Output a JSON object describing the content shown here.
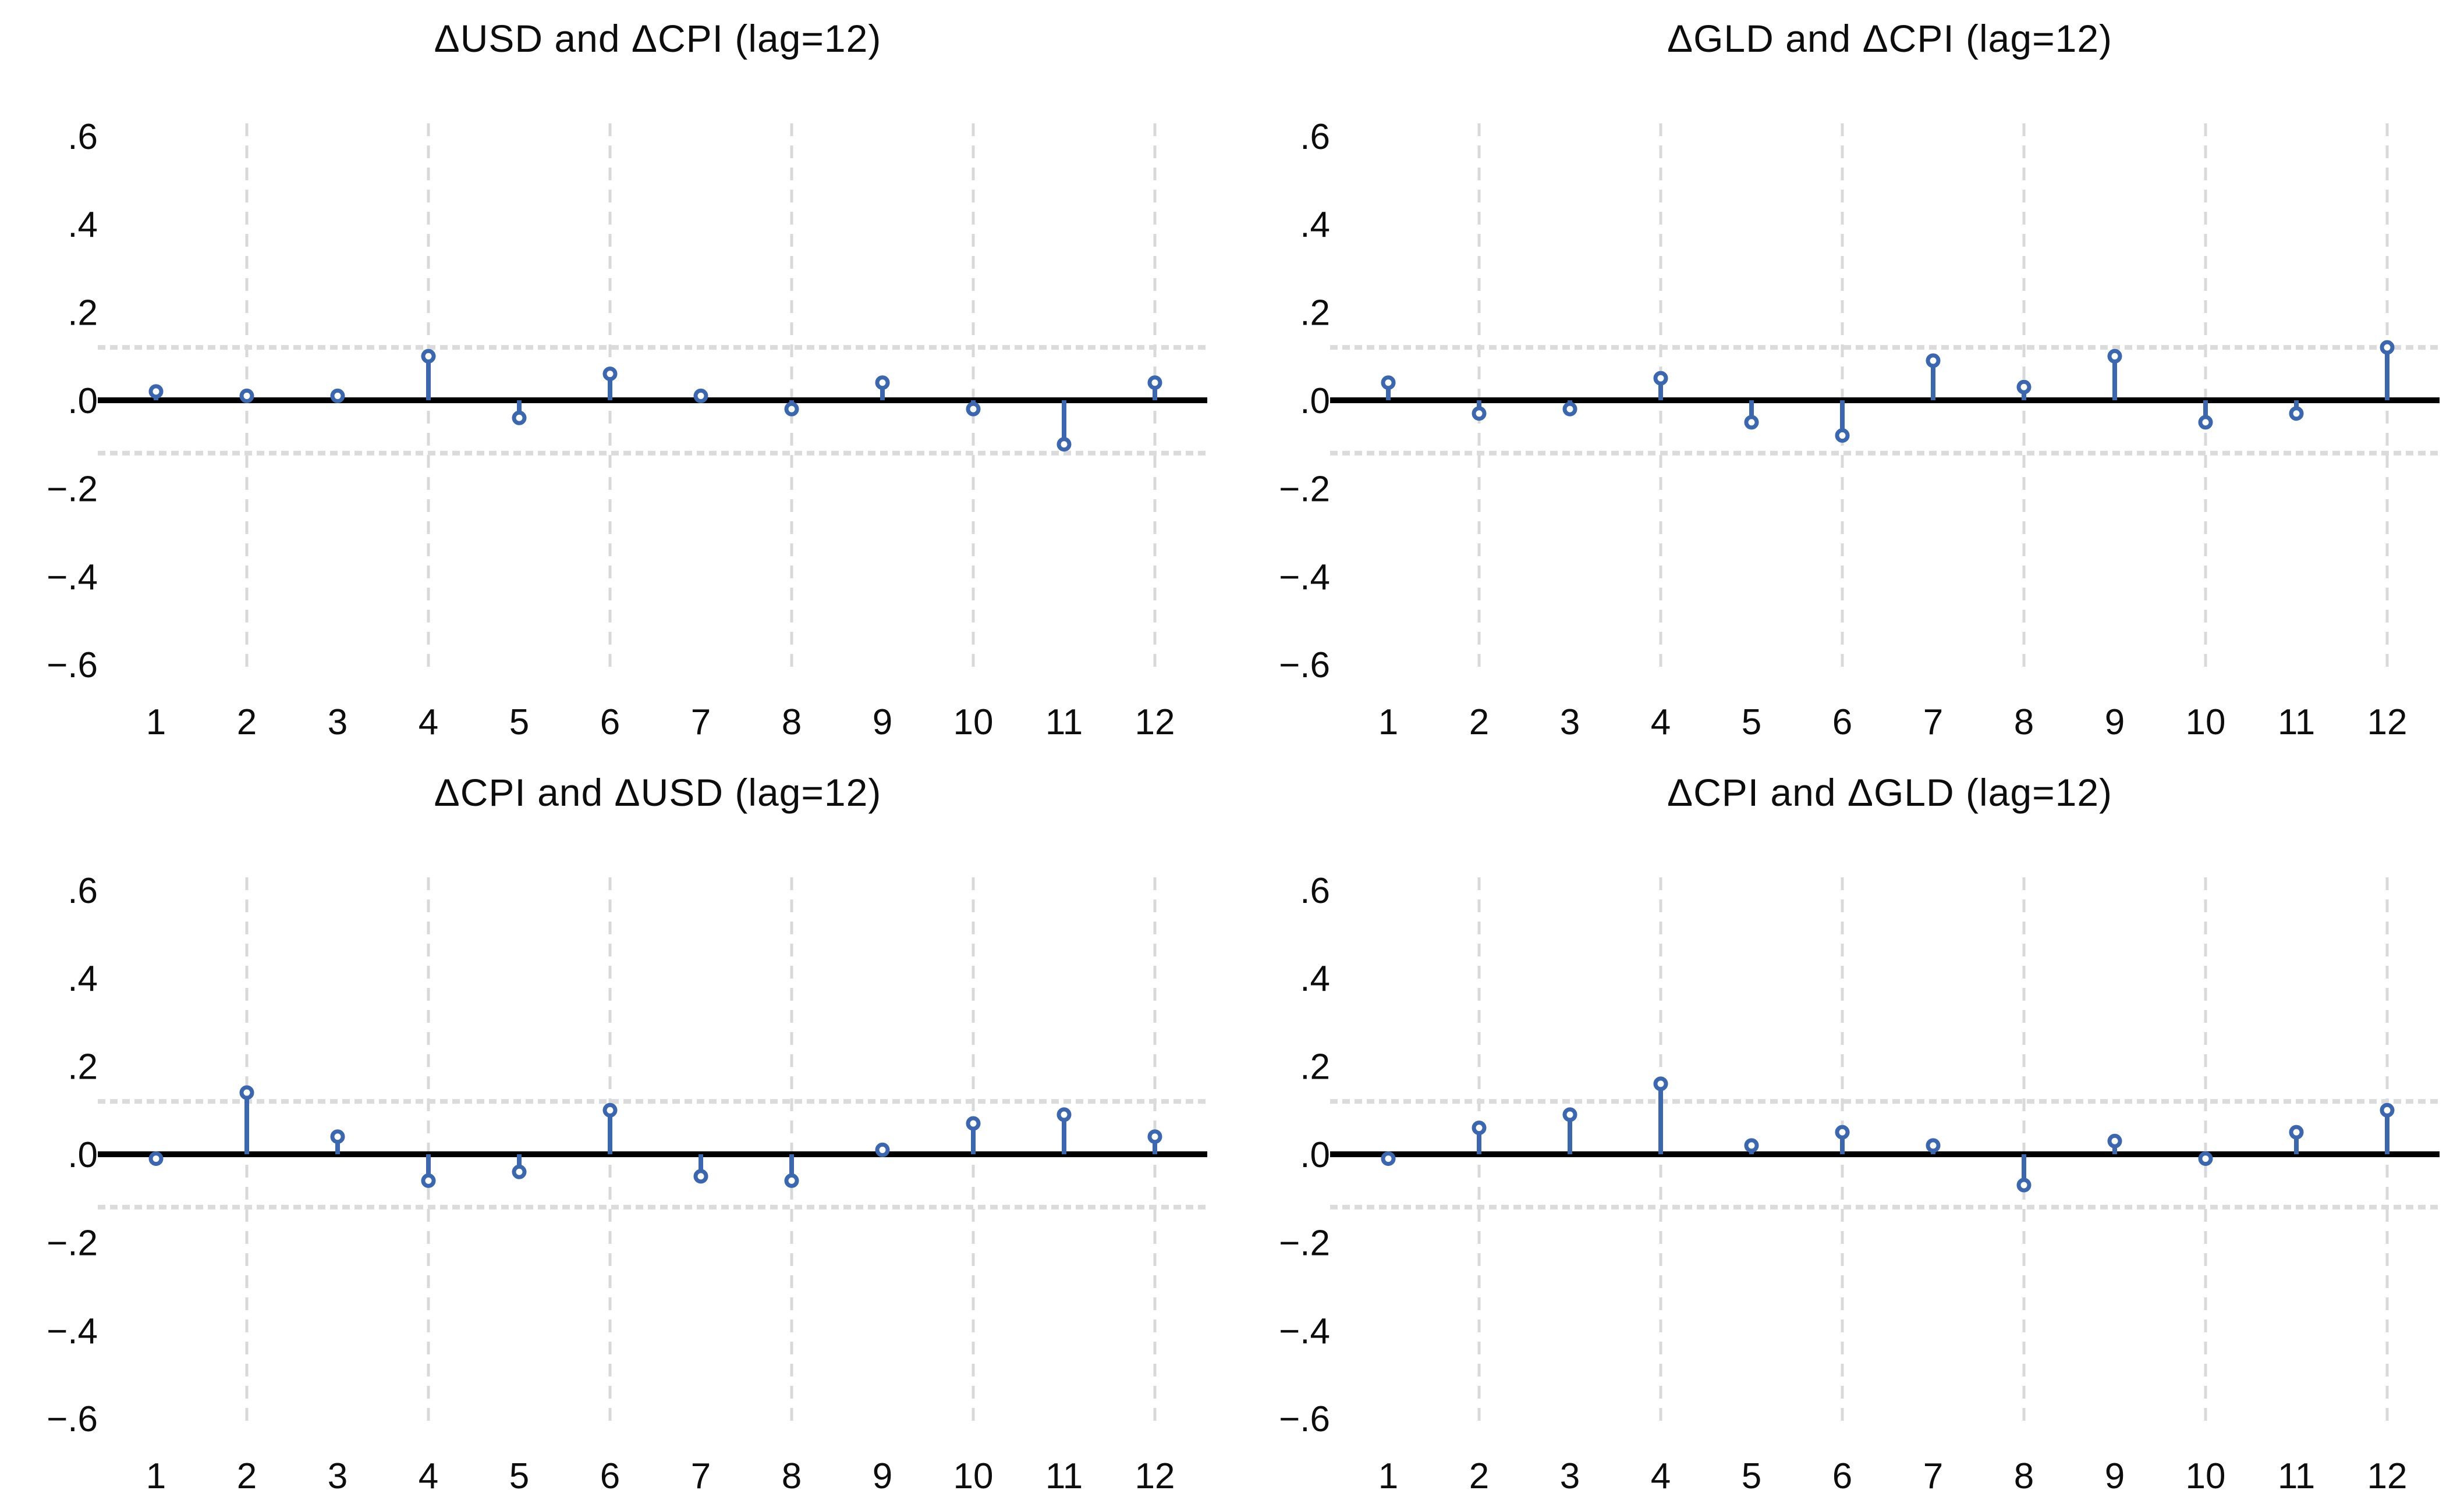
{
  "colors": {
    "stem": "#3A67B0",
    "marker_fill": "#ffffff",
    "zero_line": "#000000",
    "gridline": "#D9D9D9",
    "ci_line": "#DBDBDB",
    "text": "#0d0d0d",
    "background": "#ffffff"
  },
  "y_axis": {
    "tick_labels": [
      ".6",
      ".4",
      ".2",
      ".0",
      "−.2",
      "−.4",
      "−.6"
    ],
    "tick_values": [
      0.6,
      0.4,
      0.2,
      0.0,
      -0.2,
      -0.4,
      -0.6
    ],
    "range": [
      -0.63,
      0.63
    ]
  },
  "x_axis": {
    "tick_labels": [
      "1",
      "2",
      "3",
      "4",
      "5",
      "6",
      "7",
      "8",
      "9",
      "10",
      "11",
      "12"
    ],
    "gridlines_at": [
      1.5,
      3.5,
      5.5,
      7.5,
      9.5,
      11.5
    ]
  },
  "chart_data": [
    {
      "type": "stem",
      "title": "ΔUSD and ΔCPI (lag=12)",
      "categories": [
        1,
        2,
        3,
        4,
        5,
        6,
        7,
        8,
        9,
        10,
        11,
        12
      ],
      "values": [
        0.02,
        0.01,
        0.01,
        0.1,
        -0.04,
        0.06,
        0.01,
        -0.02,
        0.04,
        -0.02,
        -0.1,
        0.04
      ],
      "xlabel": "",
      "ylabel": "",
      "ylim": [
        -0.6,
        0.6
      ],
      "ci_band": 0.12,
      "grid": "dashed",
      "legend": "none"
    },
    {
      "type": "stem",
      "title": "ΔGLD and ΔCPI (lag=12)",
      "categories": [
        1,
        2,
        3,
        4,
        5,
        6,
        7,
        8,
        9,
        10,
        11,
        12
      ],
      "values": [
        0.04,
        -0.03,
        -0.02,
        0.05,
        -0.05,
        -0.08,
        0.09,
        0.03,
        0.1,
        -0.05,
        -0.03,
        0.12
      ],
      "xlabel": "",
      "ylabel": "",
      "ylim": [
        -0.6,
        0.6
      ],
      "ci_band": 0.12,
      "grid": "dashed",
      "legend": "none"
    },
    {
      "type": "stem",
      "title": "ΔCPI and ΔUSD (lag=12)",
      "categories": [
        1,
        2,
        3,
        4,
        5,
        6,
        7,
        8,
        9,
        10,
        11,
        12
      ],
      "values": [
        -0.01,
        0.14,
        0.04,
        -0.06,
        -0.04,
        0.1,
        -0.05,
        -0.06,
        0.01,
        0.07,
        0.09,
        0.04
      ],
      "xlabel": "",
      "ylabel": "",
      "ylim": [
        -0.6,
        0.6
      ],
      "ci_band": 0.12,
      "grid": "dashed",
      "legend": "none"
    },
    {
      "type": "stem",
      "title": "ΔCPI and ΔGLD (lag=12)",
      "categories": [
        1,
        2,
        3,
        4,
        5,
        6,
        7,
        8,
        9,
        10,
        11,
        12
      ],
      "values": [
        -0.01,
        0.06,
        0.09,
        0.16,
        0.02,
        0.05,
        0.02,
        -0.07,
        0.03,
        -0.01,
        0.05,
        0.1
      ],
      "xlabel": "",
      "ylabel": "",
      "ylim": [
        -0.6,
        0.6
      ],
      "ci_band": 0.12,
      "grid": "dashed",
      "legend": "none"
    }
  ]
}
